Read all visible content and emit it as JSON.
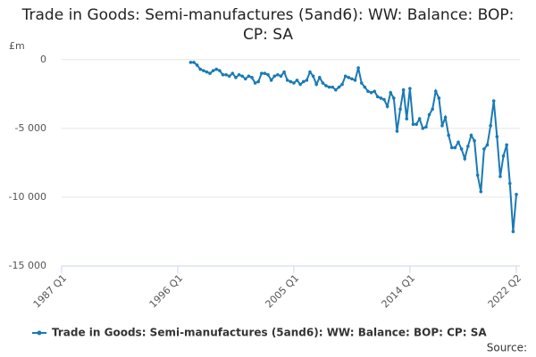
{
  "chart_data": {
    "type": "line",
    "title": "Trade in Goods: Semi-manufactures (5and6): WW: Balance: BOP: CP: SA",
    "y_label": "£m",
    "source": "Source:",
    "categories": [
      "1987 Q1",
      null,
      null,
      null,
      null,
      null,
      null,
      null,
      null,
      null,
      null,
      null,
      null,
      null,
      null,
      null,
      null,
      null,
      null,
      null,
      null,
      null,
      null,
      null,
      null,
      null,
      null,
      null,
      null,
      null,
      null,
      null,
      null,
      null,
      null,
      null,
      "1996 Q1",
      null,
      null,
      null,
      null,
      null,
      null,
      null,
      null,
      null,
      null,
      null,
      null,
      null,
      null,
      null,
      null,
      null,
      null,
      null,
      null,
      null,
      null,
      null,
      null,
      null,
      null,
      null,
      null,
      null,
      null,
      null,
      null,
      null,
      null,
      null,
      "2005 Q1",
      null,
      null,
      null,
      null,
      null,
      null,
      null,
      null,
      null,
      null,
      null,
      null,
      null,
      null,
      null,
      null,
      null,
      null,
      null,
      null,
      null,
      null,
      null,
      null,
      null,
      null,
      null,
      null,
      null,
      null,
      null,
      null,
      null,
      null,
      null,
      "2014 Q1",
      null,
      null,
      null,
      null,
      null,
      null,
      null,
      null,
      null,
      null,
      null,
      null,
      null,
      null,
      null,
      null,
      null,
      null,
      null,
      null,
      null,
      null,
      null,
      null,
      null,
      null,
      null,
      null,
      null,
      null,
      null,
      null,
      "2022 Q2"
    ],
    "series": [
      {
        "name": "Trade in Goods: Semi-manufactures (5and6): WW: Balance: BOP: CP: SA",
        "color": "#1a7ab5",
        "values": [
          null,
          null,
          null,
          null,
          null,
          null,
          null,
          null,
          null,
          null,
          null,
          null,
          null,
          null,
          null,
          null,
          null,
          null,
          null,
          null,
          null,
          null,
          null,
          null,
          null,
          null,
          null,
          null,
          null,
          null,
          null,
          null,
          null,
          null,
          null,
          null,
          null,
          null,
          null,
          null,
          -200,
          -200,
          -400,
          -700,
          -800,
          -900,
          -1000,
          -800,
          -700,
          -800,
          -1100,
          -1100,
          -1200,
          -1000,
          -1300,
          -1100,
          -1200,
          -1400,
          -1200,
          -1300,
          -1700,
          -1600,
          -1000,
          -1000,
          -1100,
          -1500,
          -1200,
          -1100,
          -1200,
          -900,
          -1500,
          -1600,
          -1700,
          -1500,
          -1800,
          -1600,
          -1500,
          -900,
          -1200,
          -1800,
          -1300,
          -1700,
          -1900,
          -2000,
          -2000,
          -2200,
          -2000,
          -1800,
          -1200,
          -1300,
          -1400,
          -1500,
          -600,
          -1700,
          -2000,
          -2300,
          -2400,
          -2300,
          -2700,
          -2800,
          -2900,
          -3400,
          -2400,
          -2800,
          -5200,
          -3600,
          -2200,
          -4300,
          -2100,
          -4700,
          -4700,
          -4300,
          -5000,
          -4900,
          -4000,
          -3600,
          -2300,
          -2800,
          -4800,
          -4200,
          -5500,
          -6400,
          -6400,
          -6000,
          -6500,
          -7200,
          -6300,
          -5500,
          -5900,
          -8400,
          -9600,
          -6500,
          -6200,
          -4800,
          -3000,
          -5600,
          -8500,
          -7000,
          -6200,
          -9000,
          -12500,
          -9800
        ]
      }
    ],
    "ylim": [
      -15000,
      700
    ],
    "yticks": [
      {
        "value": -15000,
        "label": "-15 000"
      },
      {
        "value": -10000,
        "label": "-10 000"
      },
      {
        "value": -5000,
        "label": "-5 000"
      },
      0
    ],
    "grid": true
  }
}
